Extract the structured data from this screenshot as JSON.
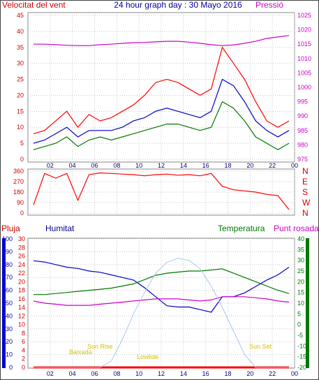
{
  "title": "24 hour graph day : 30 Mayo 2016",
  "panels": {
    "wind": {
      "left_label": "Velocitat del vent",
      "right_label": "Pressió"
    },
    "humidity": {
      "label_rain": "Pluja",
      "label_humidity": "Humitat",
      "label_temperature": "Temperatura",
      "label_dewpoint": "Punt rosada",
      "sun_labels": [
        "Sun Rise",
        "Sun Set"
      ],
      "tide_labels": [
        "Baixada",
        "Lowtide"
      ]
    }
  },
  "colors": {
    "red": "#ff0000",
    "blue": "#0000cc",
    "green": "#007800",
    "magenta": "#cc00cc",
    "sun": "#a8c8f0",
    "tide": "#e8e000",
    "grid": "#c8c8c8"
  },
  "chart_data": [
    {
      "type": "line",
      "name": "wind-pressure",
      "title": "24 hour graph day : 30 Mayo 2016",
      "xlabel": "",
      "ylabel": "Velocitat del vent",
      "y2label": "Pressió",
      "x_ticks": [
        "02",
        "04",
        "06",
        "08",
        "10",
        "12",
        "14",
        "16",
        "18",
        "20",
        "22",
        "00"
      ],
      "ylim": [
        0,
        45
      ],
      "y_ticks": [
        0,
        5,
        10,
        15,
        20,
        25,
        30,
        35,
        40,
        45
      ],
      "y2lim": [
        975,
        1025
      ],
      "y2_ticks": [
        975,
        980,
        985,
        990,
        995,
        1000,
        1005,
        1010,
        1015,
        1020,
        1025
      ],
      "grid": true,
      "x": [
        0.5,
        1.5,
        2.5,
        3.5,
        4.5,
        5.5,
        6.5,
        7.5,
        8.5,
        9.5,
        10.5,
        11.5,
        12.5,
        13.5,
        14.5,
        15.5,
        16.5,
        17.5,
        18.5,
        19.5,
        20.5,
        21.5,
        22.5,
        23.5
      ],
      "series": [
        {
          "axis": "left",
          "values": [
            8,
            9,
            12,
            15,
            10,
            14,
            12,
            13,
            15,
            17,
            20,
            24,
            25,
            24,
            22,
            20,
            22,
            35,
            30,
            25,
            18,
            12,
            10,
            12
          ]
        },
        {
          "axis": "left",
          "values": [
            5,
            6,
            8,
            10,
            7,
            9,
            9,
            9,
            10,
            12,
            13,
            15,
            16,
            15,
            14,
            13,
            15,
            25,
            23,
            18,
            12,
            9,
            7,
            9
          ]
        },
        {
          "axis": "left",
          "values": [
            3,
            4,
            5,
            7,
            4,
            6,
            7,
            6,
            7,
            8,
            9,
            10,
            11,
            11,
            10,
            9,
            10,
            18,
            16,
            12,
            7,
            5,
            3,
            5
          ]
        },
        {
          "axis": "right",
          "values": [
            1015,
            1015,
            1014.8,
            1014.6,
            1014.5,
            1014.5,
            1014.8,
            1015,
            1015.3,
            1015.5,
            1015.6,
            1015.8,
            1016,
            1016,
            1015.7,
            1015.3,
            1014.8,
            1014.5,
            1014.7,
            1015.3,
            1016,
            1017,
            1017.5,
            1018
          ]
        }
      ]
    },
    {
      "type": "scatter",
      "name": "wind-direction",
      "y_ticks": [
        0,
        90,
        180,
        270,
        360
      ],
      "right_ticks": [
        "N",
        "W",
        "S",
        "E",
        "N"
      ],
      "ylim": [
        0,
        360
      ],
      "x": [
        0.5,
        1.5,
        2.5,
        3.5,
        4.5,
        5.5,
        6.5,
        7.5,
        8.5,
        9.5,
        10.5,
        11.5,
        12.5,
        13.5,
        14.5,
        15.5,
        16.5,
        17.5,
        18.5,
        19.5,
        20.5,
        21.5,
        22.5,
        23.5
      ],
      "values": [
        70,
        340,
        300,
        340,
        110,
        330,
        345,
        340,
        335,
        330,
        320,
        330,
        335,
        325,
        330,
        320,
        340,
        230,
        200,
        190,
        180,
        160,
        150,
        30
      ]
    },
    {
      "type": "line",
      "name": "humidity-temperature",
      "x_ticks": [
        "02",
        "04",
        "06",
        "08",
        "10",
        "12",
        "14",
        "16",
        "18",
        "20",
        "22",
        "00"
      ],
      "rain_ticks": [
        0,
        10,
        20,
        30,
        40,
        50,
        60,
        70,
        80,
        90,
        100
      ],
      "humidity_ticks": [
        0,
        2,
        4,
        6,
        8,
        10,
        12,
        14,
        16,
        18,
        20,
        22,
        24,
        26,
        28,
        30
      ],
      "temperature_ticks": [
        -20,
        -15,
        -10,
        -5,
        0,
        5,
        10,
        15,
        20,
        25,
        30,
        35,
        40
      ],
      "ylim": [
        0,
        100
      ],
      "y2lim": [
        -20,
        40
      ],
      "grid": true,
      "x": [
        0.5,
        1.5,
        2.5,
        3.5,
        4.5,
        5.5,
        6.5,
        7.5,
        8.5,
        9.5,
        10.5,
        11.5,
        12.5,
        13.5,
        14.5,
        15.5,
        16.5,
        17.5,
        18.5,
        19.5,
        20.5,
        21.5,
        22.5,
        23.5
      ],
      "series": [
        {
          "axis": "left",
          "values": [
            83,
            82,
            80,
            78,
            77,
            75,
            74,
            72,
            70,
            68,
            62,
            55,
            48,
            47,
            47,
            45,
            43,
            55,
            55,
            58,
            63,
            68,
            72,
            78
          ]
        },
        {
          "axis": "right",
          "values": [
            14,
            14,
            14.5,
            15,
            15.5,
            16,
            16.5,
            17,
            18,
            19,
            21,
            23,
            24,
            24.5,
            25,
            25,
            25.5,
            26,
            24,
            22,
            20,
            18,
            16,
            14.5
          ]
        },
        {
          "axis": "right",
          "values": [
            11,
            10,
            9.5,
            9,
            9,
            9,
            9.5,
            10,
            10.5,
            11,
            11.5,
            12,
            12,
            12,
            11.5,
            11,
            11.5,
            13,
            13,
            13,
            12.5,
            12,
            11,
            10.5
          ]
        },
        {
          "axis": "right",
          "values": [
            -20,
            -20,
            -20,
            -20,
            -20,
            -20,
            -20,
            -17,
            -7,
            5,
            15,
            24,
            29,
            31,
            30,
            26,
            18,
            8,
            -3,
            -14,
            -20,
            -20,
            -20,
            -20
          ]
        }
      ],
      "rain_values": [
        0,
        0,
        0,
        0,
        0,
        0,
        0,
        0,
        0,
        0,
        0,
        0,
        0,
        0,
        0,
        0,
        0,
        0,
        0,
        0,
        0,
        0,
        0,
        0
      ]
    }
  ]
}
